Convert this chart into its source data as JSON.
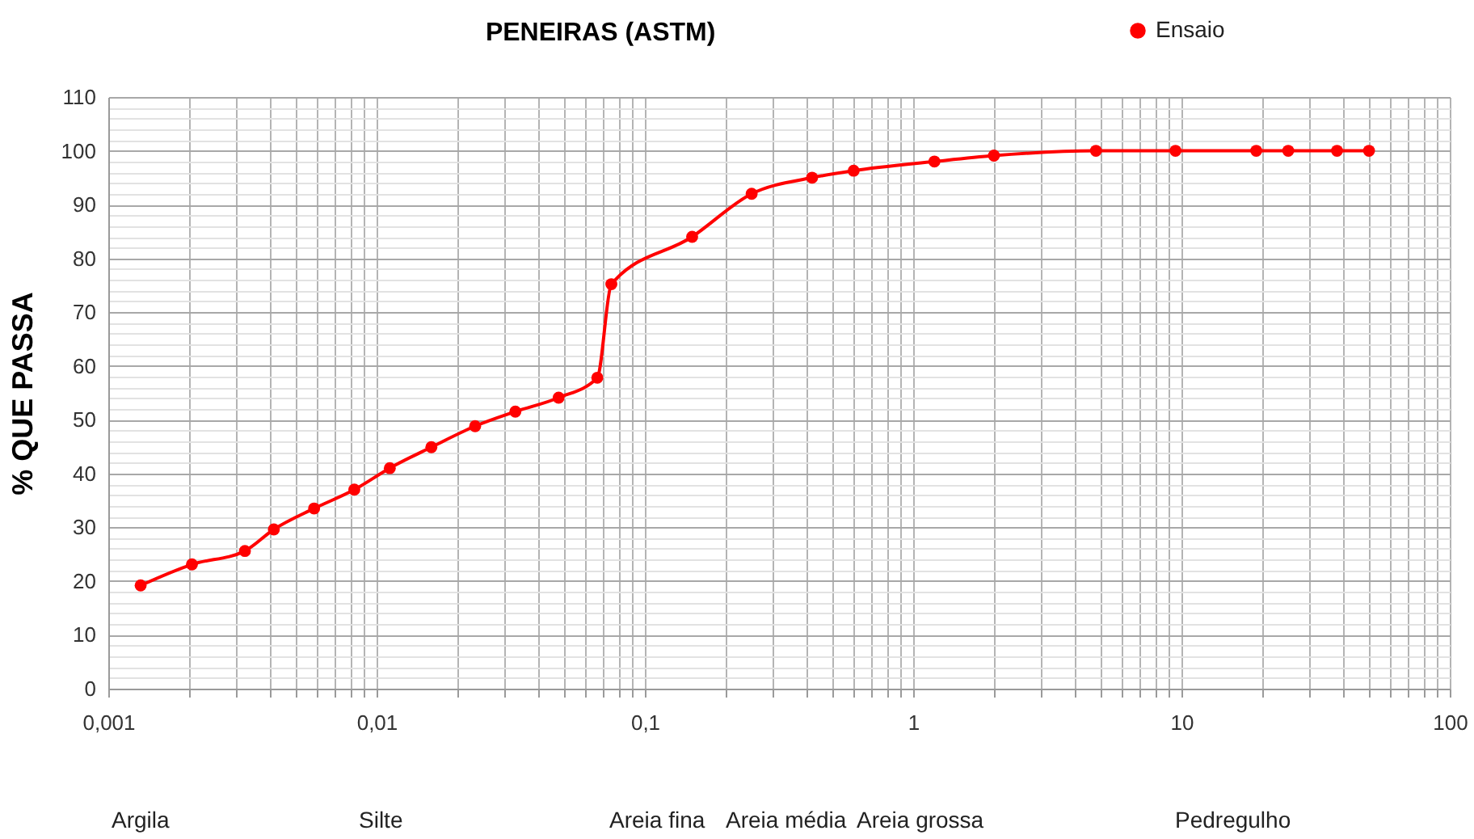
{
  "chart_data": {
    "type": "line",
    "title": "PENEIRAS (ASTM)",
    "ylabel": "% QUE PASSA",
    "log": "x",
    "grid": true,
    "legend": "top right",
    "marker": "circle",
    "line_style": "solid",
    "x": [
      0.00132,
      0.00205,
      0.00323,
      0.00414,
      0.00585,
      0.00826,
      0.0112,
      0.016,
      0.0233,
      0.0329,
      0.0477,
      0.0665,
      0.075,
      0.15,
      0.25,
      0.42,
      0.6,
      1.2,
      2,
      4.8,
      9.5,
      19,
      25,
      38,
      50
    ],
    "series": [
      {
        "name": "Ensaio",
        "color": "#ff0000",
        "values": [
          19.2,
          23.1,
          25.6,
          29.6,
          33.5,
          37,
          41,
          44.9,
          48.8,
          51.5,
          54.1,
          57.8,
          75.2,
          84,
          92,
          95,
          96.3,
          98,
          99.1,
          100,
          100,
          100,
          100,
          100,
          100
        ]
      }
    ],
    "xlim": [
      0.001,
      100
    ],
    "xticks": [
      {
        "value": 0.001,
        "label": "0,001"
      },
      {
        "value": 0.002,
        "label": null
      },
      {
        "value": 0.003,
        "label": null
      },
      {
        "value": 0.004,
        "label": null
      },
      {
        "value": 0.005,
        "label": null
      },
      {
        "value": 0.006,
        "label": null
      },
      {
        "value": 0.007,
        "label": null
      },
      {
        "value": 0.008,
        "label": null
      },
      {
        "value": 0.009,
        "label": null
      },
      {
        "value": 0.01,
        "label": "0,01"
      },
      {
        "value": 0.02,
        "label": null
      },
      {
        "value": 0.03,
        "label": null
      },
      {
        "value": 0.04,
        "label": null
      },
      {
        "value": 0.05,
        "label": null
      },
      {
        "value": 0.06,
        "label": null
      },
      {
        "value": 0.07,
        "label": null
      },
      {
        "value": 0.08,
        "label": null
      },
      {
        "value": 0.09,
        "label": null
      },
      {
        "value": 0.1,
        "label": "0,1"
      },
      {
        "value": 0.2,
        "label": null
      },
      {
        "value": 0.3,
        "label": null
      },
      {
        "value": 0.4,
        "label": null
      },
      {
        "value": 0.5,
        "label": null
      },
      {
        "value": 0.6,
        "label": null
      },
      {
        "value": 0.7,
        "label": null
      },
      {
        "value": 0.8,
        "label": null
      },
      {
        "value": 0.9,
        "label": null
      },
      1,
      {
        "value": 2,
        "label": null
      },
      {
        "value": 3,
        "label": null
      },
      {
        "value": 4,
        "label": null
      },
      {
        "value": 5,
        "label": null
      },
      {
        "value": 6,
        "label": null
      },
      {
        "value": 7,
        "label": null
      },
      {
        "value": 8,
        "label": null
      },
      {
        "value": 9,
        "label": null
      },
      10,
      {
        "value": 20,
        "label": null
      },
      {
        "value": 30,
        "label": null
      },
      {
        "value": 40,
        "label": null
      },
      {
        "value": 50,
        "label": null
      },
      {
        "value": 60,
        "label": null
      },
      {
        "value": 70,
        "label": null
      },
      {
        "value": 80,
        "label": null
      },
      {
        "value": 90,
        "label": null
      },
      100
    ],
    "ylim": [
      0,
      110
    ],
    "yticks": [
      0,
      {
        "value": 2,
        "label": null
      },
      {
        "value": 4,
        "label": null
      },
      {
        "value": 6,
        "label": null
      },
      {
        "value": 8,
        "label": null
      },
      10,
      {
        "value": 12,
        "label": null
      },
      {
        "value": 14,
        "label": null
      },
      {
        "value": 16,
        "label": null
      },
      {
        "value": 18,
        "label": null
      },
      20,
      {
        "value": 22,
        "label": null
      },
      {
        "value": 24,
        "label": null
      },
      {
        "value": 26,
        "label": null
      },
      {
        "value": 28,
        "label": null
      },
      30,
      {
        "value": 32,
        "label": null
      },
      {
        "value": 34,
        "label": null
      },
      {
        "value": 36,
        "label": null
      },
      {
        "value": 38,
        "label": null
      },
      40,
      {
        "value": 42,
        "label": null
      },
      {
        "value": 44,
        "label": null
      },
      {
        "value": 46,
        "label": null
      },
      {
        "value": 48,
        "label": null
      },
      50,
      {
        "value": 52,
        "label": null
      },
      {
        "value": 54,
        "label": null
      },
      {
        "value": 56,
        "label": null
      },
      {
        "value": 58,
        "label": null
      },
      60,
      {
        "value": 62,
        "label": null
      },
      {
        "value": 64,
        "label": null
      },
      {
        "value": 66,
        "label": null
      },
      {
        "value": 68,
        "label": null
      },
      70,
      {
        "value": 72,
        "label": null
      },
      {
        "value": 74,
        "label": null
      },
      {
        "value": 76,
        "label": null
      },
      {
        "value": 78,
        "label": null
      },
      80,
      {
        "value": 82,
        "label": null
      },
      {
        "value": 84,
        "label": null
      },
      {
        "value": 86,
        "label": null
      },
      {
        "value": 88,
        "label": null
      },
      90,
      {
        "value": 92,
        "label": null
      },
      {
        "value": 94,
        "label": null
      },
      {
        "value": 96,
        "label": null
      },
      {
        "value": 98,
        "label": null
      },
      100,
      {
        "value": 102,
        "label": null
      },
      {
        "value": 104,
        "label": null
      },
      {
        "value": 106,
        "label": null
      },
      {
        "value": 108,
        "label": null
      },
      110
    ],
    "annotations": [
      "Argila",
      "Silte",
      "Areia fina",
      "Areia média",
      "Areia grossa",
      "Pedregulho"
    ]
  }
}
